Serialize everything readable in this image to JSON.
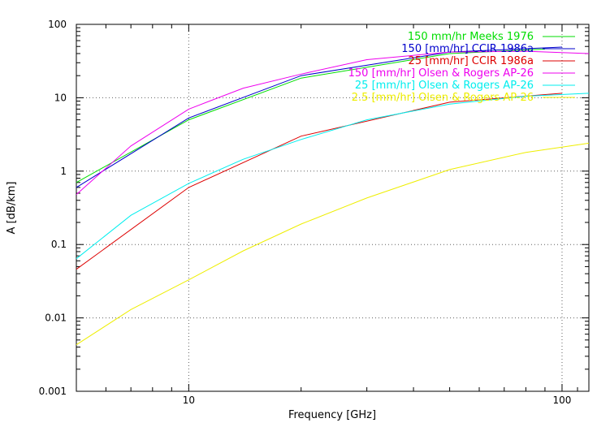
{
  "chart_data": {
    "type": "line",
    "xlabel": "Frequency [GHz]",
    "ylabel": "A [dB/km]",
    "xscale": "log",
    "yscale": "log",
    "xlim": [
      5,
      118
    ],
    "ylim": [
      0.001,
      100
    ],
    "grid": true,
    "legend_position": "top-right",
    "x_ticks": [
      10,
      100
    ],
    "x_tick_labels": [
      "10",
      "100"
    ],
    "y_ticks": [
      0.001,
      0.01,
      0.1,
      1,
      10,
      100
    ],
    "y_tick_labels": [
      "0.001",
      "0.01",
      "0.1",
      "1",
      "10",
      "100"
    ],
    "series": [
      {
        "name": "150 mm/hr Meeks 1976",
        "color": "#00dd00",
        "x": [
          5,
          10,
          20,
          50,
          90
        ],
        "y": [
          0.7,
          5.0,
          18.5,
          40,
          46
        ]
      },
      {
        "name": "150 [mm/hr] CCIR 1986a",
        "color": "#0000cc",
        "x": [
          5,
          10,
          20,
          50,
          100
        ],
        "y": [
          0.6,
          5.3,
          20,
          42,
          49
        ]
      },
      {
        "name": "25 [mm/hr] CCIR 1986a",
        "color": "#dd0000",
        "x": [
          5,
          10,
          20,
          50,
          100
        ],
        "y": [
          0.046,
          0.6,
          3.0,
          8.7,
          11.5
        ]
      },
      {
        "name": "150 [mm/hr] Olsen & Rogers AP-26",
        "color": "#ee00ee",
        "x": [
          5,
          7,
          10,
          14,
          20,
          30,
          50,
          80,
          118
        ],
        "y": [
          0.48,
          2.2,
          7.0,
          13.5,
          21,
          33,
          42,
          43,
          40
        ]
      },
      {
        "name": "25 [mm/hr] Olsen & Rogers AP-26",
        "color": "#00eeee",
        "x": [
          5,
          7,
          10,
          14,
          20,
          30,
          50,
          80,
          118
        ],
        "y": [
          0.064,
          0.25,
          0.68,
          1.45,
          2.7,
          5.0,
          8.2,
          10.5,
          11.5
        ]
      },
      {
        "name": "2.5 [mm/hr] Olsen & Rogers AP-26",
        "color": "#eeee00",
        "x": [
          5,
          7,
          10,
          14,
          20,
          30,
          50,
          80,
          118
        ],
        "y": [
          0.0043,
          0.013,
          0.033,
          0.082,
          0.19,
          0.43,
          1.05,
          1.8,
          2.4
        ]
      }
    ]
  }
}
